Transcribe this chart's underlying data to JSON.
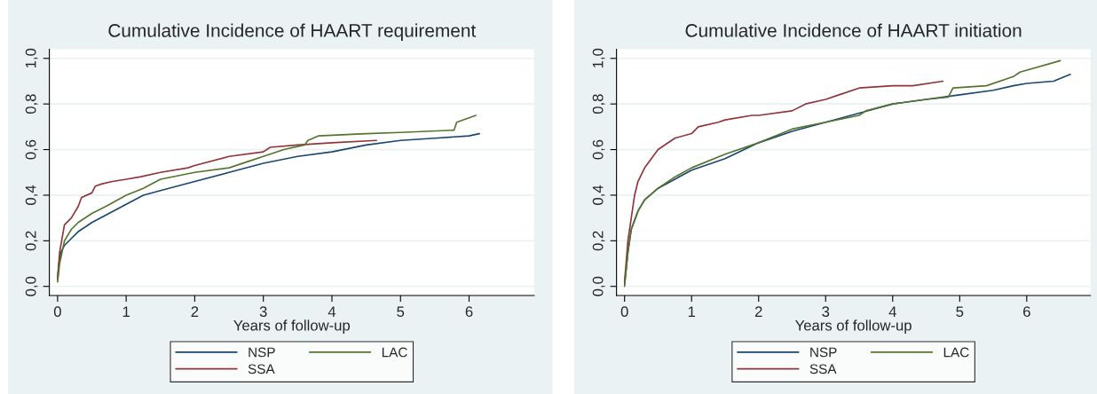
{
  "chart_data": [
    {
      "type": "line",
      "title": "Cumulative Incidence of HAART requirement",
      "xlabel": "Years of follow-up",
      "xlim": [
        -0.12,
        6.95
      ],
      "ylim": [
        -0.04,
        1.04
      ],
      "xticks": [
        0,
        1,
        2,
        3,
        4,
        5,
        6
      ],
      "yticks": [
        {
          "value": 0,
          "label": "0,0"
        },
        {
          "value": 0.2,
          "label": "0,2"
        },
        {
          "value": 0.4,
          "label": "0,4"
        },
        {
          "value": 0.6,
          "label": "0,6"
        },
        {
          "value": 0.8,
          "label": "0,8"
        },
        {
          "value": 1,
          "label": "1,0"
        }
      ],
      "grid": "y",
      "legend": "bottom",
      "marker": "none",
      "line_style": "solid",
      "series": [
        {
          "name": "NSP",
          "color": "#1a476f",
          "x": [
            0,
            0.02,
            0.05,
            0.1,
            0.2,
            0.3,
            0.5,
            0.75,
            1,
            1.25,
            1.5,
            2,
            2.5,
            3,
            3.5,
            4,
            4.5,
            5,
            5.5,
            6,
            6.15
          ],
          "values": [
            0.03,
            0.1,
            0.15,
            0.18,
            0.21,
            0.24,
            0.28,
            0.32,
            0.36,
            0.4,
            0.42,
            0.46,
            0.5,
            0.54,
            0.57,
            0.59,
            0.62,
            0.64,
            0.65,
            0.66,
            0.67
          ]
        },
        {
          "name": "SSA",
          "color": "#90353b",
          "x": [
            0,
            0.03,
            0.1,
            0.2,
            0.3,
            0.35,
            0.5,
            0.55,
            0.65,
            0.8,
            1,
            1.2,
            1.5,
            1.9,
            2,
            2.5,
            3,
            3.1,
            3.5,
            4,
            4.65
          ],
          "values": [
            0.04,
            0.15,
            0.27,
            0.3,
            0.35,
            0.39,
            0.41,
            0.44,
            0.45,
            0.46,
            0.47,
            0.48,
            0.5,
            0.52,
            0.53,
            0.57,
            0.59,
            0.61,
            0.62,
            0.63,
            0.64
          ]
        },
        {
          "name": "LAC",
          "color": "#55752f",
          "x": [
            0,
            0.03,
            0.1,
            0.2,
            0.3,
            0.5,
            0.7,
            1,
            1.25,
            1.5,
            2,
            2.5,
            2.8,
            3,
            3.3,
            3.6,
            3.65,
            3.8,
            4.5,
            5,
            5.78,
            5.82,
            6.1
          ],
          "values": [
            0.02,
            0.1,
            0.2,
            0.25,
            0.28,
            0.32,
            0.35,
            0.4,
            0.43,
            0.47,
            0.5,
            0.52,
            0.55,
            0.57,
            0.6,
            0.62,
            0.64,
            0.66,
            0.67,
            0.675,
            0.685,
            0.72,
            0.75
          ]
        }
      ]
    },
    {
      "type": "line",
      "title": "Cumulative Incidence of HAART initiation",
      "xlabel": "Years of follow-up",
      "xlim": [
        -0.12,
        6.95
      ],
      "ylim": [
        -0.04,
        1.04
      ],
      "xticks": [
        0,
        1,
        2,
        3,
        4,
        5,
        6
      ],
      "yticks": [
        {
          "value": 0,
          "label": "0,0"
        },
        {
          "value": 0.2,
          "label": "0,2"
        },
        {
          "value": 0.4,
          "label": "0,4"
        },
        {
          "value": 0.6,
          "label": "0,6"
        },
        {
          "value": 0.8,
          "label": "0,8"
        },
        {
          "value": 1,
          "label": "1,0"
        }
      ],
      "grid": "y",
      "legend": "bottom",
      "marker": "none",
      "line_style": "solid",
      "series": [
        {
          "name": "NSP",
          "color": "#1a476f",
          "x": [
            0,
            0.05,
            0.1,
            0.2,
            0.3,
            0.5,
            0.75,
            1,
            1.5,
            2,
            2.5,
            3,
            3.5,
            4,
            4.5,
            5,
            5.5,
            5.8,
            6,
            6.4,
            6.65
          ],
          "values": [
            0.01,
            0.15,
            0.25,
            0.33,
            0.38,
            0.43,
            0.47,
            0.51,
            0.56,
            0.63,
            0.68,
            0.72,
            0.76,
            0.8,
            0.82,
            0.84,
            0.86,
            0.88,
            0.89,
            0.9,
            0.93
          ]
        },
        {
          "name": "SSA",
          "color": "#90353b",
          "x": [
            0,
            0.05,
            0.1,
            0.15,
            0.2,
            0.3,
            0.4,
            0.5,
            0.75,
            1,
            1.1,
            1.4,
            1.5,
            1.9,
            2,
            2.5,
            2.7,
            3,
            3.2,
            3.5,
            4,
            4.3,
            4.75
          ],
          "values": [
            0.02,
            0.2,
            0.3,
            0.4,
            0.46,
            0.52,
            0.56,
            0.6,
            0.65,
            0.67,
            0.7,
            0.72,
            0.73,
            0.75,
            0.75,
            0.77,
            0.8,
            0.82,
            0.84,
            0.87,
            0.88,
            0.88,
            0.9
          ]
        },
        {
          "name": "LAC",
          "color": "#55752f",
          "x": [
            0,
            0.05,
            0.1,
            0.2,
            0.3,
            0.5,
            0.75,
            1,
            1.5,
            2,
            2.5,
            3,
            3.5,
            3.6,
            4,
            4.5,
            4.83,
            4.9,
            5.4,
            5.8,
            5.9,
            6.5
          ],
          "values": [
            0.0,
            0.15,
            0.25,
            0.33,
            0.38,
            0.43,
            0.48,
            0.52,
            0.58,
            0.63,
            0.69,
            0.72,
            0.75,
            0.77,
            0.8,
            0.82,
            0.83,
            0.87,
            0.88,
            0.92,
            0.94,
            0.99
          ]
        }
      ]
    }
  ]
}
